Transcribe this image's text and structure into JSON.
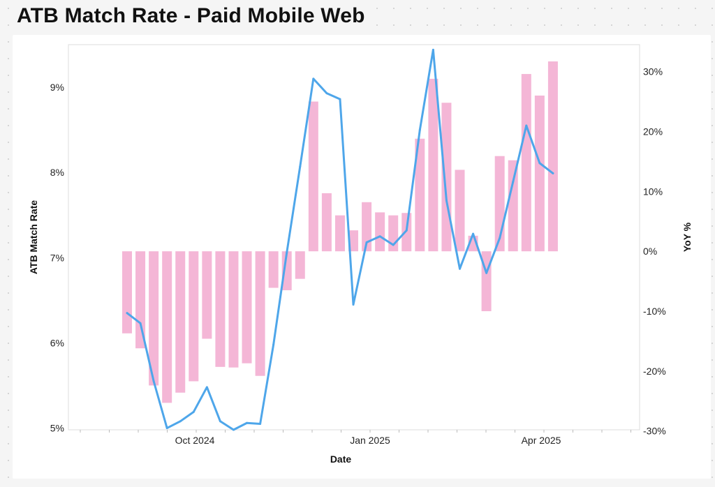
{
  "chart_data": {
    "type": "bar+line",
    "title": "ATB Match Rate - Paid Mobile Web",
    "xlabel": "Date",
    "ylabel": "ATB Match Rate",
    "y2label": "YoY %",
    "y_ticks": [
      "5%",
      "6%",
      "7%",
      "8%",
      "9%"
    ],
    "y_ticks_values": [
      5,
      6,
      7,
      8,
      9
    ],
    "y2_ticks": [
      "-30%",
      "-20%",
      "-10%",
      "0%",
      "10%",
      "20%",
      "30%"
    ],
    "y2_ticks_values": [
      -30,
      -20,
      -10,
      0,
      10,
      20,
      30
    ],
    "x_ticks": [
      "Oct 2024",
      "Jan 2025",
      "Apr 2025"
    ],
    "ylim": [
      4.98,
      9.5
    ],
    "y2lim": [
      -29.8,
      34.5
    ],
    "series": [
      {
        "name": "YoY %",
        "type": "bar",
        "axis": "right",
        "color": "#f4b6d6",
        "values": [
          -13.7,
          -16.2,
          -22.4,
          -25.3,
          -23.6,
          -21.7,
          -14.6,
          -19.3,
          -19.4,
          -18.7,
          -20.8,
          -6.1,
          -6.5,
          -4.6,
          25,
          9.7,
          6,
          3.5,
          8.2,
          6.5,
          6,
          6.4,
          18.8,
          28.8,
          24.8,
          13.6,
          2.6,
          -10,
          15.9,
          15.2,
          29.6,
          26,
          31.7
        ]
      },
      {
        "name": "ATB Match Rate",
        "type": "line",
        "axis": "left",
        "color": "#4ea6ea",
        "values": [
          6.35,
          6.23,
          5.55,
          5.0,
          5.08,
          5.19,
          5.48,
          5.08,
          4.98,
          5.06,
          5.05,
          5.98,
          7.06,
          8.07,
          9.1,
          8.93,
          8.86,
          6.45,
          7.18,
          7.25,
          7.15,
          7.32,
          8.5,
          9.44,
          7.67,
          6.87,
          7.28,
          6.82,
          7.23,
          7.89,
          8.55,
          8.11,
          7.99
        ]
      }
    ]
  }
}
